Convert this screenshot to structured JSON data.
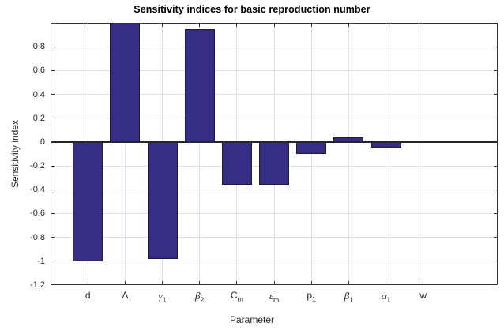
{
  "figure": {
    "background": "#ffffff"
  },
  "chart_data": {
    "type": "bar",
    "title": "Sensitivity indices for basic reproduction number",
    "xlabel": "Parameter",
    "ylabel": "Sensitivity index",
    "categories": [
      "d",
      "Λ",
      "γ_1",
      "β_2",
      "C_m",
      "ε_m",
      "p_1",
      "β_1",
      "α_1",
      "w"
    ],
    "categories_rich": [
      {
        "key": "d",
        "base": "d",
        "sub": "",
        "italic": false
      },
      {
        "key": "lambda",
        "base": "Λ",
        "sub": "",
        "italic": false
      },
      {
        "key": "gamma-1",
        "base": "γ",
        "sub": "1",
        "italic": true
      },
      {
        "key": "beta-2",
        "base": "β",
        "sub": "2",
        "italic": true
      },
      {
        "key": "c-m",
        "base": "C",
        "sub": "m",
        "italic": false
      },
      {
        "key": "epsilon-m",
        "base": "ε",
        "sub": "m",
        "italic": true
      },
      {
        "key": "p-1",
        "base": "p",
        "sub": "1",
        "italic": false
      },
      {
        "key": "beta-1",
        "base": "β",
        "sub": "1",
        "italic": true
      },
      {
        "key": "alpha-1",
        "base": "α",
        "sub": "1",
        "italic": true
      },
      {
        "key": "w",
        "base": "w",
        "sub": "",
        "italic": false
      }
    ],
    "values": [
      -1.0,
      1.0,
      -0.98,
      0.95,
      -0.36,
      -0.36,
      -0.1,
      0.04,
      -0.05,
      0.0
    ],
    "ylim": [
      -1.2,
      1.0
    ],
    "xlim": [
      0,
      12
    ],
    "yticks": {
      "values": [
        0.8,
        0.6,
        0.4,
        0.2,
        0,
        -0.2,
        -0.4,
        -0.6,
        -0.8,
        -1,
        -1.2
      ],
      "labels": [
        "0.8",
        "0.6",
        "0.4",
        "0.2",
        "0",
        "-0.2",
        "-0.4",
        "-0.6",
        "-0.8",
        "-1",
        "-1.2"
      ]
    },
    "grid": true,
    "legend": "none",
    "bar_width_fraction": 0.8,
    "colors": {
      "bar_fill": "#362d84",
      "bar_edge": "#1c1c2e",
      "axis": "#333333",
      "grid": "#e2e2e2",
      "title": "#000000",
      "tick_label": "#262626"
    }
  }
}
